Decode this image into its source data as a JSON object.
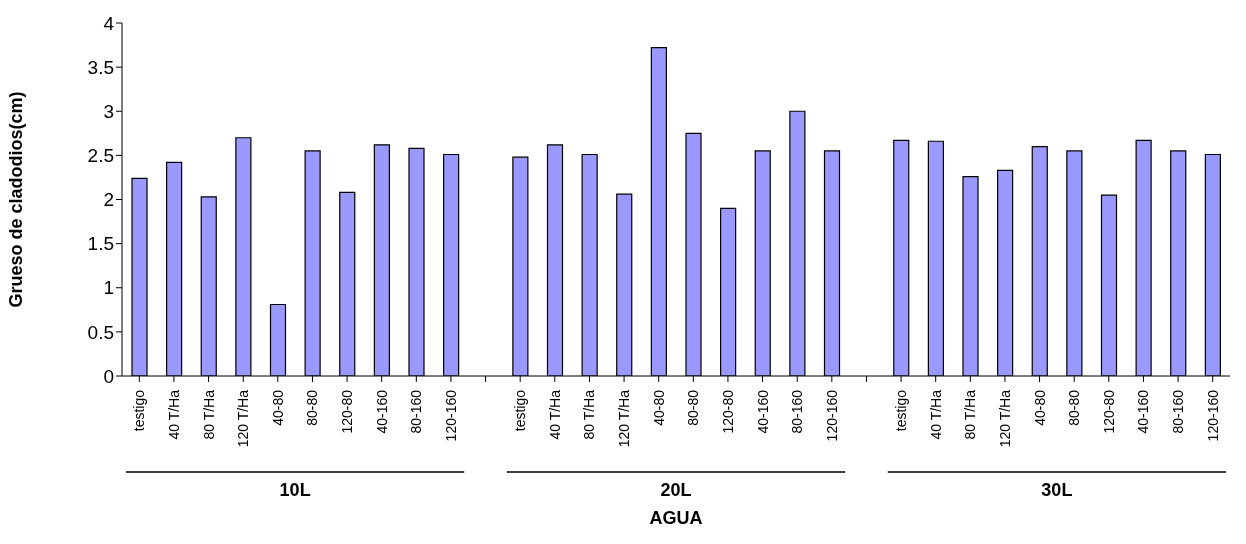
{
  "chart_data": {
    "type": "bar",
    "xlabel": "AGUA",
    "ylabel": "Grueso de cladodios(cm)",
    "categories": [
      "testigo",
      "40 T/Ha",
      "80 T/Ha",
      "120 T/Ha",
      "40-80",
      "80-80",
      "120-80",
      "40-160",
      "80-160",
      "120-160",
      null,
      "testigo",
      "40 T/Ha",
      "80 T/Ha",
      "120 T/Ha",
      "40-80",
      "80-80",
      "120-80",
      "40-160",
      "80-160",
      "120-160",
      null,
      "testigo",
      "40 T/Ha",
      "80 T/Ha",
      "120 T/Ha",
      "40-80",
      "80-80",
      "120-80",
      "40-160",
      "80-160",
      "120-160"
    ],
    "values": [
      2.24,
      2.42,
      2.03,
      2.7,
      0.81,
      2.55,
      2.08,
      2.62,
      2.58,
      2.51,
      null,
      2.48,
      2.62,
      2.51,
      2.06,
      3.72,
      2.75,
      1.9,
      2.55,
      3.0,
      2.55,
      null,
      2.67,
      2.66,
      2.26,
      2.33,
      2.6,
      2.55,
      2.05,
      2.67,
      2.55,
      2.51
    ],
    "color": "#9999ff",
    "ylim": [
      0,
      4
    ],
    "yticks": [
      0,
      0.5,
      1,
      1.5,
      2,
      2.5,
      3,
      3.5,
      4
    ],
    "annotations": [
      "10L",
      "20L",
      "30L"
    ],
    "grid": false,
    "legend": false
  }
}
